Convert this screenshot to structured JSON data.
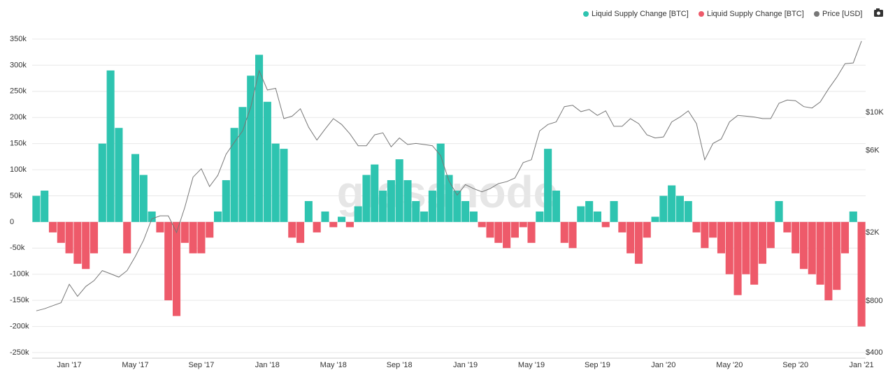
{
  "chart_data": {
    "type": "bar_line",
    "watermark": "glassnode",
    "categories": [
      null,
      null,
      null,
      null,
      "Jan '17",
      null,
      null,
      null,
      null,
      null,
      null,
      null,
      "May '17",
      null,
      null,
      null,
      null,
      null,
      null,
      null,
      "Sep '17",
      null,
      null,
      null,
      null,
      null,
      null,
      null,
      "Jan '18",
      null,
      null,
      null,
      null,
      null,
      null,
      null,
      "May '18",
      null,
      null,
      null,
      null,
      null,
      null,
      null,
      "Sep '18",
      null,
      null,
      null,
      null,
      null,
      null,
      null,
      "Jan '19",
      null,
      null,
      null,
      null,
      null,
      null,
      null,
      "May '19",
      null,
      null,
      null,
      null,
      null,
      null,
      null,
      "Sep '19",
      null,
      null,
      null,
      null,
      null,
      null,
      null,
      "Jan '20",
      null,
      null,
      null,
      null,
      null,
      null,
      null,
      "May '20",
      null,
      null,
      null,
      null,
      null,
      null,
      null,
      "Sep '20",
      null,
      null,
      null,
      null,
      null,
      null,
      null,
      "Jan '21"
    ],
    "series": [
      {
        "name": "Liquid Supply Change [BTC]",
        "color": "#2ec4b0",
        "values": [
          50000,
          60000,
          null,
          null,
          null,
          null,
          null,
          null,
          150000,
          290000,
          180000,
          null,
          130000,
          90000,
          20000,
          null,
          null,
          null,
          null,
          null,
          null,
          null,
          20000,
          80000,
          180000,
          220000,
          280000,
          320000,
          230000,
          150000,
          140000,
          null,
          null,
          40000,
          null,
          20000,
          null,
          10000,
          null,
          30000,
          90000,
          110000,
          60000,
          80000,
          120000,
          80000,
          40000,
          20000,
          60000,
          150000,
          90000,
          60000,
          40000,
          20000,
          null,
          null,
          null,
          null,
          null,
          null,
          null,
          20000,
          140000,
          60000,
          null,
          null,
          30000,
          40000,
          20000,
          null,
          40000,
          null,
          null,
          null,
          null,
          10000,
          50000,
          70000,
          50000,
          40000,
          null,
          null,
          null,
          null,
          null,
          null,
          null,
          null,
          null,
          null,
          40000,
          null,
          null,
          null,
          null,
          null,
          null,
          null,
          null,
          20000,
          null
        ]
      },
      {
        "name": "Liquid Supply Change [BTC]",
        "color": "#ee5a6a",
        "values": [
          null,
          null,
          -20000,
          -40000,
          -60000,
          -80000,
          -90000,
          -60000,
          null,
          null,
          null,
          -60000,
          null,
          null,
          null,
          -20000,
          -150000,
          -180000,
          -40000,
          -60000,
          -60000,
          -30000,
          null,
          null,
          null,
          null,
          null,
          null,
          null,
          null,
          null,
          -30000,
          -40000,
          null,
          -20000,
          null,
          -10000,
          null,
          -10000,
          null,
          null,
          null,
          null,
          null,
          null,
          null,
          null,
          null,
          null,
          null,
          null,
          null,
          null,
          null,
          -10000,
          -30000,
          -40000,
          -50000,
          -30000,
          -10000,
          -40000,
          null,
          null,
          null,
          -40000,
          -50000,
          null,
          null,
          null,
          -10000,
          null,
          -20000,
          -60000,
          -80000,
          -30000,
          null,
          null,
          null,
          null,
          null,
          -20000,
          -50000,
          -30000,
          -60000,
          -100000,
          -140000,
          -100000,
          -120000,
          -80000,
          -50000,
          null,
          -20000,
          -60000,
          -90000,
          -100000,
          -120000,
          -150000,
          -130000,
          -60000,
          null,
          -200000
        ]
      },
      {
        "name": "Price [USD]",
        "color": "#777777",
        "axis": "y2",
        "values": [
          700,
          720,
          750,
          780,
          1000,
          850,
          970,
          1050,
          1200,
          1150,
          1100,
          1200,
          1450,
          1800,
          2400,
          2500,
          2500,
          2000,
          2800,
          4200,
          4700,
          3700,
          4300,
          5700,
          6700,
          7800,
          10800,
          17500,
          13500,
          13800,
          9200,
          9500,
          10500,
          8200,
          6900,
          8000,
          9200,
          8500,
          7500,
          6400,
          6400,
          7400,
          7600,
          6300,
          7100,
          6500,
          6600,
          6500,
          6400,
          5600,
          4000,
          3300,
          3800,
          3600,
          3450,
          3600,
          3850,
          3950,
          4150,
          5100,
          5300,
          7800,
          8500,
          8800,
          10800,
          11000,
          10100,
          10400,
          9600,
          10200,
          8300,
          8300,
          9200,
          8600,
          7400,
          7100,
          7200,
          8800,
          9400,
          10200,
          8600,
          5300,
          6600,
          7000,
          8800,
          9600,
          9500,
          9400,
          9200,
          9200,
          11300,
          11800,
          11700,
          10800,
          10600,
          11500,
          13700,
          16000,
          19200,
          19400,
          26000
        ]
      }
    ],
    "ylim": [
      -250000,
      350000
    ],
    "yticks": [
      {
        "value": -250000,
        "label": "-250k"
      },
      {
        "value": -200000,
        "label": "-200k"
      },
      {
        "value": -150000,
        "label": "-150k"
      },
      {
        "value": -100000,
        "label": "-100k"
      },
      {
        "value": -50000,
        "label": "-50k"
      },
      0,
      {
        "value": 50000,
        "label": "50k"
      },
      {
        "value": 100000,
        "label": "100k"
      },
      {
        "value": 150000,
        "label": "150k"
      },
      {
        "value": 200000,
        "label": "200k"
      },
      {
        "value": 250000,
        "label": "250k"
      },
      {
        "value": 300000,
        "label": "300k"
      },
      {
        "value": 350000,
        "label": "350k"
      }
    ],
    "y2lim": [
      400,
      26700
    ],
    "y2scale": "log",
    "y2ticks": [
      {
        "value": 400,
        "label": "$400"
      },
      {
        "value": 800,
        "label": "$800"
      },
      {
        "value": 2000,
        "label": "$2K"
      },
      {
        "value": 6000,
        "label": "$6K"
      },
      {
        "value": 10000,
        "label": "$10K"
      }
    ],
    "grid": true
  }
}
